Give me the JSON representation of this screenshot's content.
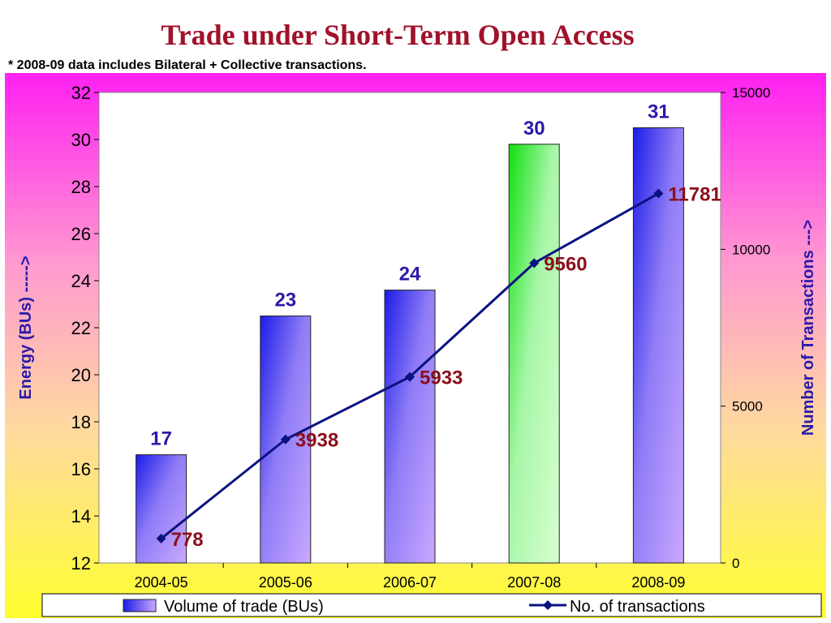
{
  "title": "Trade under Short-Term Open Access",
  "note": "* 2008-09 data includes Bilateral + Collective transactions.",
  "chart_data": {
    "type": "bar",
    "categories": [
      "2004-05",
      "2005-06",
      "2006-07",
      "2007-08",
      "2008-09"
    ],
    "series": [
      {
        "name": "Volume of trade (BUs)",
        "type": "bar",
        "axis": "left",
        "values": [
          16.6,
          22.5,
          23.6,
          29.8,
          30.5
        ],
        "data_labels": [
          "17",
          "23",
          "24",
          "30",
          "31"
        ],
        "colors": [
          "#3c2de6",
          "#3c2de6",
          "#3c2de6",
          "#16e016",
          "#3c2de6"
        ]
      },
      {
        "name": "No. of transactions",
        "type": "line",
        "axis": "right",
        "values": [
          778,
          3938,
          5933,
          9560,
          11781
        ],
        "data_labels": [
          "778",
          "3938",
          "5933",
          "9560",
          "11781"
        ],
        "color": "#0b1280"
      }
    ],
    "ylabel": "Energy (BUs) ----->",
    "y2label": "Number of Transactions --->",
    "ylim": [
      12,
      32
    ],
    "y2lim": [
      0,
      15000
    ],
    "yticks": [
      "12",
      "14",
      "16",
      "18",
      "20",
      "22",
      "24",
      "26",
      "28",
      "30",
      "32"
    ],
    "y2ticks": [
      "0",
      "5000",
      "10000",
      "15000"
    ],
    "grid": false,
    "legend_position": "bottom"
  }
}
